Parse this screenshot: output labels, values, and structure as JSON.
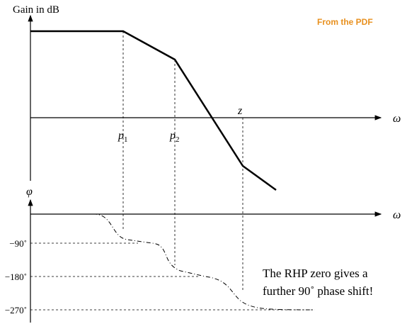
{
  "gain_plot": {
    "y_label": "Gain in dB",
    "x_label": "ω",
    "markers": [
      {
        "label": "p",
        "sub": "1"
      },
      {
        "label": "p",
        "sub": "2"
      },
      {
        "label": "z"
      }
    ]
  },
  "phase_plot": {
    "y_label": "φ",
    "x_label": "ω",
    "levels": [
      "−90˚",
      "−180˚",
      "−270˚"
    ]
  },
  "source_note": "From the PDF",
  "annotation": [
    "The RHP zero gives a",
    "further 90˚ phase shift!"
  ]
}
